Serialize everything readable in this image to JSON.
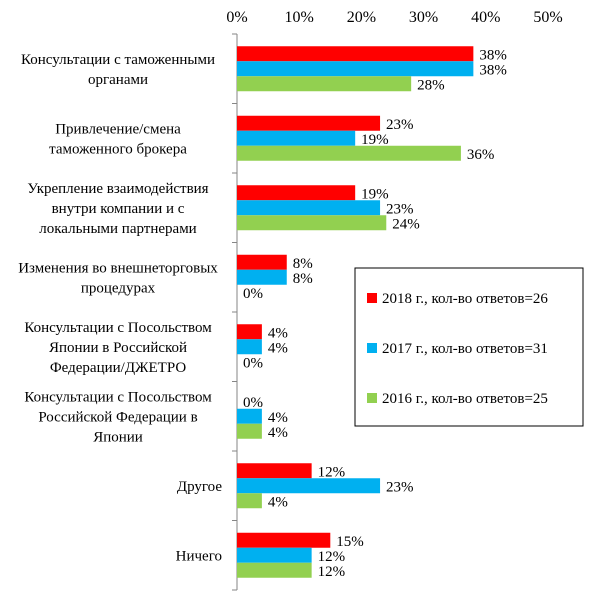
{
  "chart_data": {
    "type": "bar",
    "orientation": "horizontal",
    "xlim": [
      0,
      50
    ],
    "xticks": [
      0,
      10,
      20,
      30,
      40,
      50
    ],
    "tick_suffix": "%",
    "grid": false,
    "legend_position": "right",
    "categories": [
      [
        "Консультации с таможенными",
        "органами"
      ],
      [
        "Привлечение/смена",
        "таможенного брокера"
      ],
      [
        "Укрепление взаимодействия",
        "внутри компании и с",
        "локальными партнерами"
      ],
      [
        "Изменения во внешнеторговых",
        "процедурах"
      ],
      [
        "Консультации с Посольством",
        "Японии в Российской",
        "Федерации/ДЖЕТРО"
      ],
      [
        "Консультации с Посольством",
        "Российской Федерации в",
        "Японии"
      ],
      [
        "Другое"
      ],
      [
        "Ничего"
      ]
    ],
    "series": [
      {
        "name": "2018 г., кол-во ответов=26",
        "color": "#ff0000",
        "values": [
          38,
          23,
          19,
          8,
          4,
          0,
          12,
          15
        ],
        "labels": [
          "38%",
          "23%",
          "19%",
          "8%",
          "4%",
          "0%",
          "12%",
          "15%"
        ]
      },
      {
        "name": "2017 г., кол-во ответов=31",
        "color": "#00b0f0",
        "values": [
          38,
          19,
          23,
          8,
          4,
          4,
          23,
          12
        ],
        "labels": [
          "38%",
          "19%",
          "23%",
          "8%",
          "4%",
          "4%",
          "23%",
          "12%"
        ]
      },
      {
        "name": "2016 г., кол-во ответов=25",
        "color": "#92d050",
        "values": [
          28,
          36,
          24,
          0,
          0,
          4,
          4,
          12
        ],
        "labels": [
          "28%",
          "36%",
          "24%",
          "0%",
          "0%",
          "4%",
          "4%",
          "12%"
        ]
      }
    ]
  }
}
